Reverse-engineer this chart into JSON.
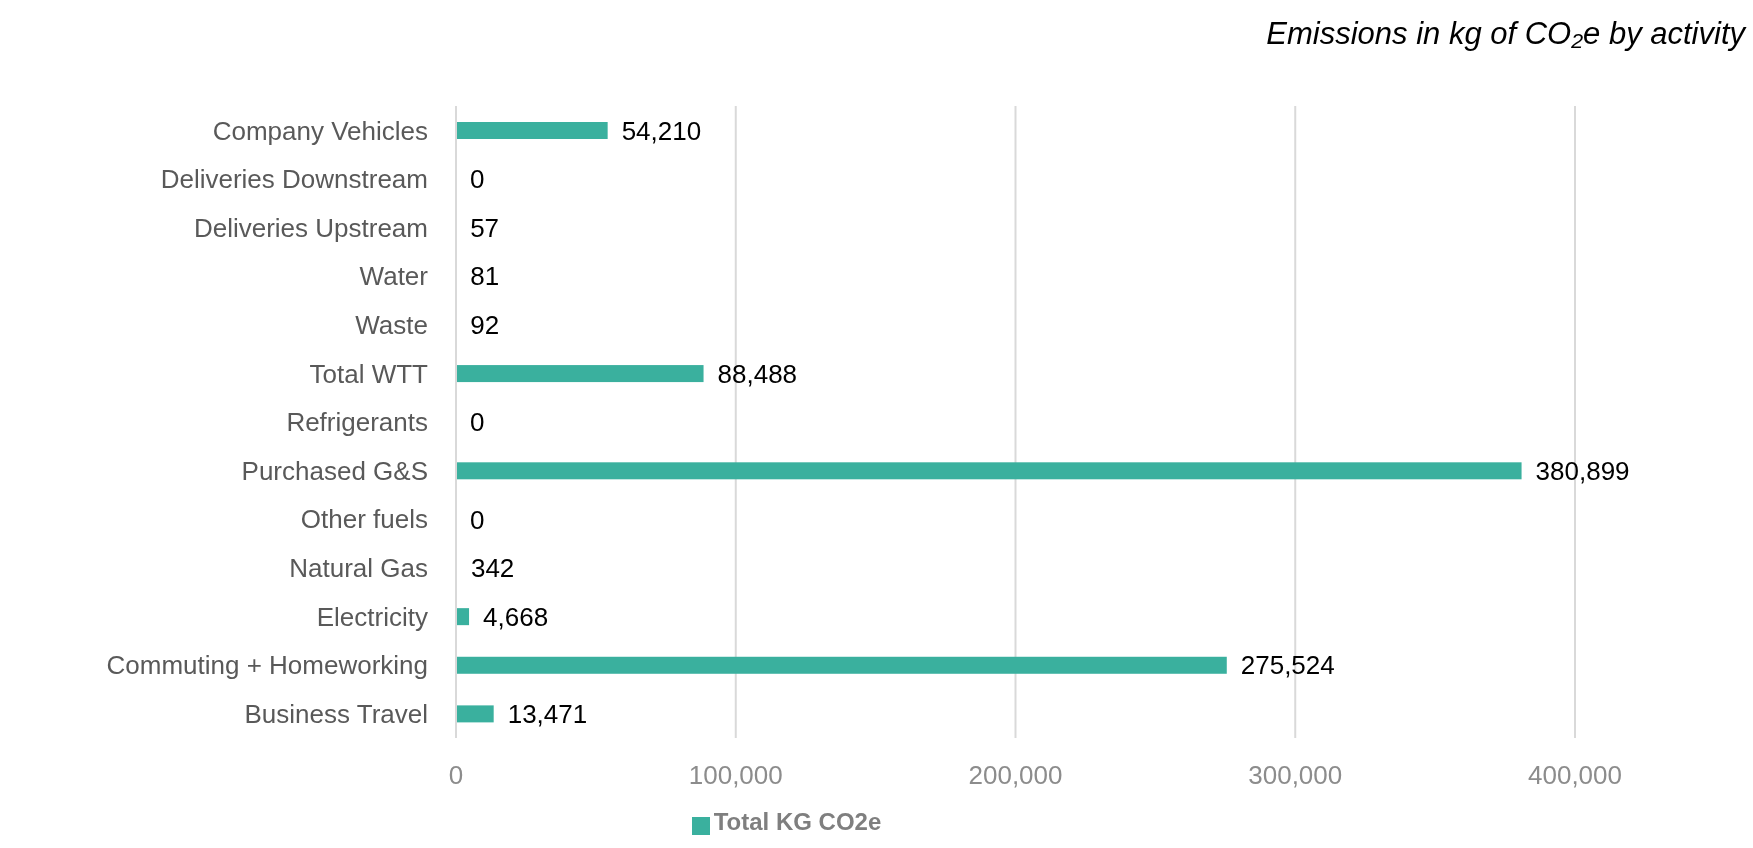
{
  "chart_data": {
    "type": "bar",
    "orientation": "horizontal",
    "title": "Emissions in kg of CO₂e by activity",
    "categories": [
      "Company Vehicles",
      "Deliveries Downstream",
      "Deliveries Upstream",
      "Water",
      "Waste",
      "Total WTT",
      "Refrigerants",
      "Purchased G&S",
      "Other fuels",
      "Natural Gas",
      "Electricity",
      "Commuting + Homeworking",
      "Business Travel"
    ],
    "series": [
      {
        "name": "Total KG CO2e",
        "color": "#3ab09e",
        "values": [
          54210,
          0,
          57,
          81,
          92,
          88488,
          0,
          380899,
          0,
          342,
          4668,
          275524,
          13471
        ],
        "value_labels": [
          "54,210",
          "0",
          "57",
          "81",
          "92",
          "88,488",
          "0",
          "380,899",
          "0",
          "342",
          "4,668",
          "275,524",
          "13,471"
        ]
      }
    ],
    "xlim": [
      0,
      400000
    ],
    "xticks": [
      {
        "value": 0,
        "label": "0"
      },
      {
        "value": 100000,
        "label": "100,000"
      },
      {
        "value": 200000,
        "label": "200,000"
      },
      {
        "value": 300000,
        "label": "300,000"
      },
      {
        "value": 400000,
        "label": "400,000"
      }
    ],
    "grid": "x",
    "legend": "bottom"
  }
}
